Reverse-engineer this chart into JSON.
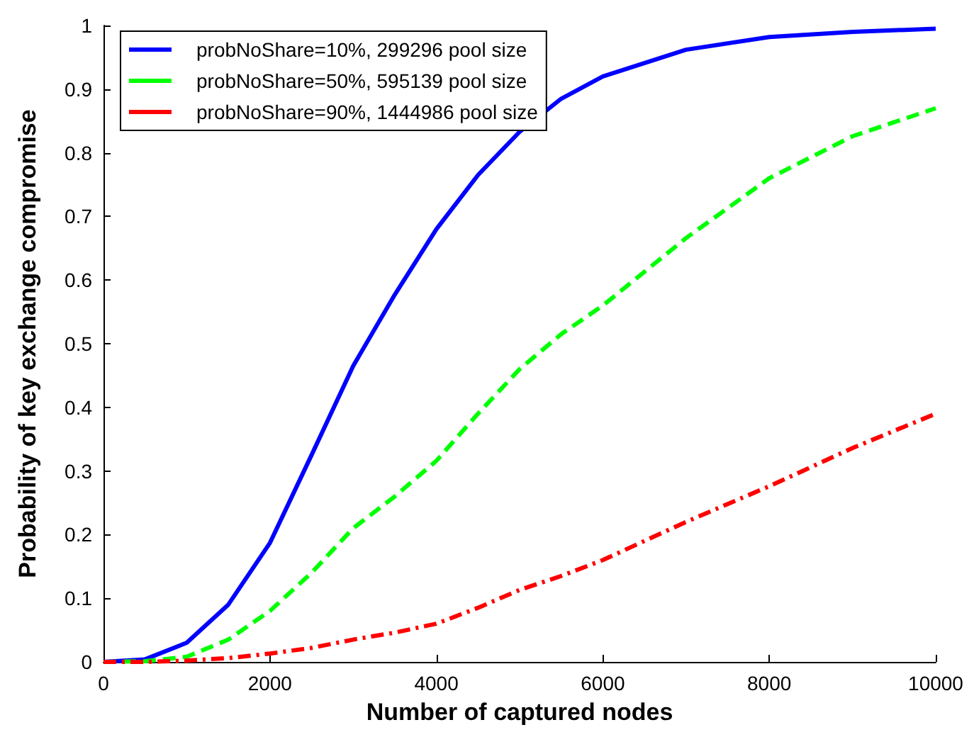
{
  "chart_data": {
    "type": "line",
    "xlabel": "Number of captured nodes",
    "ylabel": "Probability of key exchange compromise",
    "x": [
      0,
      500,
      1000,
      1500,
      2000,
      2500,
      3000,
      3500,
      4000,
      4500,
      5000,
      5500,
      6000,
      7000,
      8000,
      9000,
      10000
    ],
    "series": [
      {
        "name": "probNoShare=10%, 299296 pool size",
        "color": "#0000ff",
        "line_style": "solid",
        "values": [
          0,
          0.004,
          0.03,
          0.09,
          0.187,
          0.325,
          0.465,
          0.577,
          0.68,
          0.765,
          0.833,
          0.885,
          0.92,
          0.962,
          0.982,
          0.99,
          0.995
        ]
      },
      {
        "name": "probNoShare=50%, 595139 pool size",
        "color": "#00ff00",
        "line_style": "dashed",
        "values": [
          0,
          0.001,
          0.008,
          0.035,
          0.08,
          0.14,
          0.21,
          0.26,
          0.316,
          0.39,
          0.46,
          0.515,
          0.56,
          0.666,
          0.76,
          0.826,
          0.87
        ]
      },
      {
        "name": "probNoShare=90%, 1444986 pool size",
        "color": "#ff0000",
        "line_style": "dashdot",
        "values": [
          0,
          0,
          0.002,
          0.006,
          0.013,
          0.022,
          0.035,
          0.046,
          0.06,
          0.085,
          0.113,
          0.135,
          0.16,
          0.22,
          0.276,
          0.336,
          0.39
        ]
      }
    ],
    "xlim": [
      0,
      10000
    ],
    "xticks": [
      0,
      2000,
      4000,
      6000,
      8000,
      10000
    ],
    "ylim": [
      0,
      1
    ],
    "yticks": [
      0,
      0.1,
      0.2,
      0.3,
      0.4,
      0.5,
      0.6,
      0.7,
      0.8,
      0.9,
      1
    ],
    "grid": false,
    "legend": "top left",
    "marker": "none"
  }
}
